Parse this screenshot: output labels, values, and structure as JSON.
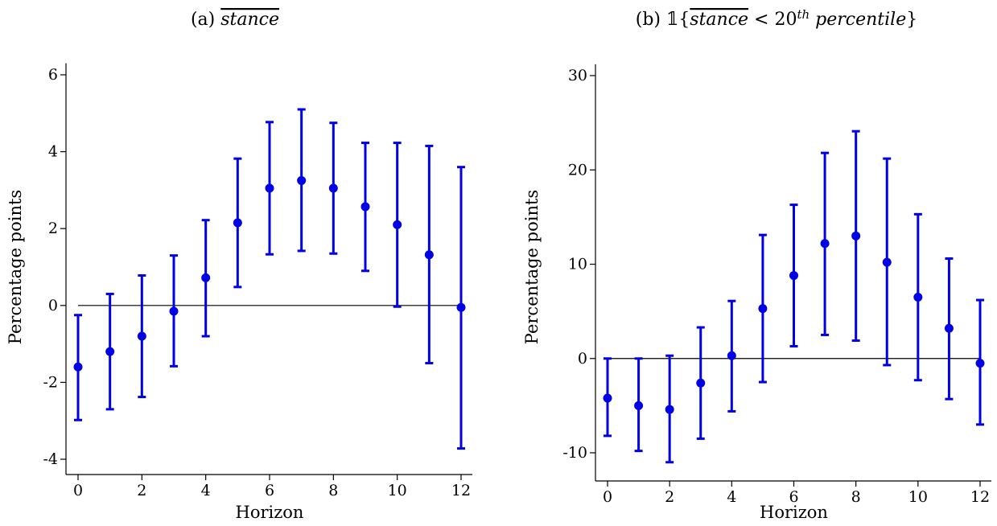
{
  "colors": {
    "series": "#0000e6",
    "axis": "#000000"
  },
  "chart_data": [
    {
      "type": "scatter",
      "error_bars": true,
      "title_label": "(a)",
      "title_expression": "stance",
      "title_overline": true,
      "xlabel": "Horizon",
      "ylabel": "Percentage points",
      "xlim": [
        0,
        12
      ],
      "ylim": [
        -4.3,
        6.3
      ],
      "xticks": [
        0,
        2,
        4,
        6,
        8,
        10,
        12
      ],
      "yticks": [
        -4,
        -2,
        0,
        2,
        4,
        6
      ],
      "zero_line": true,
      "grid": false,
      "x": [
        0,
        1,
        2,
        3,
        4,
        5,
        6,
        7,
        8,
        9,
        10,
        11,
        12
      ],
      "y": [
        -1.6,
        -1.2,
        -0.8,
        -0.15,
        0.72,
        2.15,
        3.05,
        3.25,
        3.05,
        2.57,
        2.1,
        1.32,
        -0.05
      ],
      "lower": [
        -2.98,
        -2.7,
        -2.38,
        -1.58,
        -0.8,
        0.48,
        1.33,
        1.42,
        1.35,
        0.9,
        -0.03,
        -1.5,
        -3.72
      ],
      "upper": [
        -0.25,
        0.3,
        0.78,
        1.3,
        2.22,
        3.82,
        4.77,
        5.1,
        4.75,
        4.23,
        4.23,
        4.15,
        3.6
      ]
    },
    {
      "type": "scatter",
      "error_bars": true,
      "title_label": "(b)",
      "title_indicator": "𝟙{",
      "title_expression": "stance",
      "title_overline": true,
      "title_operator": " < ",
      "title_number": "20",
      "title_superscript": "th",
      "title_rest": " percentile",
      "title_close": "}",
      "xlabel": "Horizon",
      "ylabel": "Percentage points",
      "xlim": [
        0,
        12
      ],
      "ylim": [
        -11.2,
        31.2
      ],
      "xticks": [
        0,
        2,
        4,
        6,
        8,
        10,
        12
      ],
      "yticks": [
        -10,
        0,
        10,
        20,
        30
      ],
      "zero_line": true,
      "grid": false,
      "x": [
        0,
        1,
        2,
        3,
        4,
        5,
        6,
        7,
        8,
        9,
        10,
        11,
        12
      ],
      "y": [
        -4.2,
        -5.0,
        -5.4,
        -2.6,
        0.3,
        5.3,
        8.8,
        12.2,
        13.0,
        10.2,
        6.5,
        3.2,
        -0.5
      ],
      "lower": [
        -8.2,
        -9.8,
        -11.0,
        -8.5,
        -5.6,
        -2.5,
        1.3,
        2.5,
        1.9,
        -0.7,
        -2.3,
        -4.3,
        -7.0
      ],
      "upper": [
        0.0,
        0.0,
        0.3,
        3.3,
        6.1,
        13.1,
        16.3,
        21.8,
        24.1,
        21.2,
        15.3,
        10.6,
        6.2
      ]
    }
  ]
}
